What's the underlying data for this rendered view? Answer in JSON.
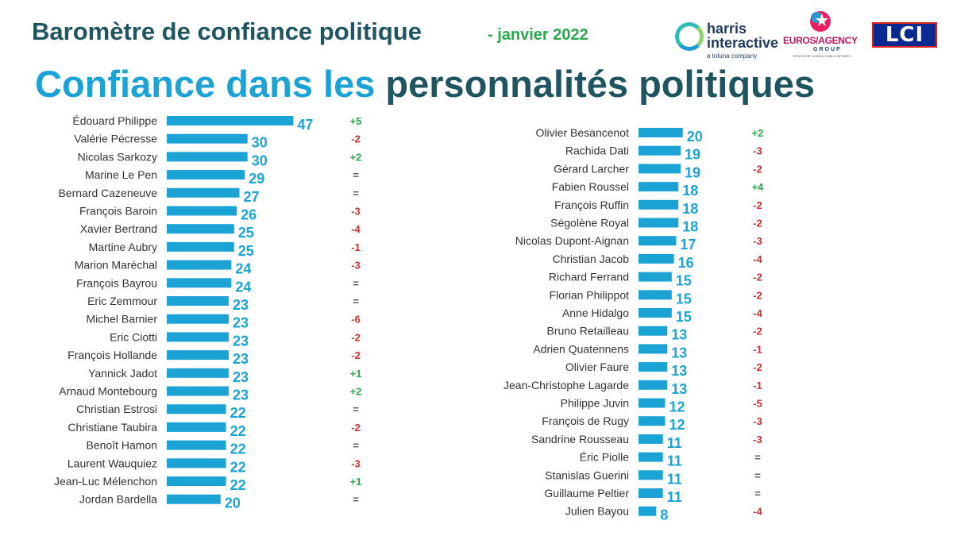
{
  "header": {
    "title": "Baromètre de confiance politique",
    "date": "- janvier 2022",
    "subtitle_part1": "Confiance dans les",
    "subtitle_part2": "personnalités politiques"
  },
  "logos": {
    "harris_line1": "harris",
    "harris_line2": "interactive",
    "harris_tagline": "a toluna company",
    "euros_name": "EUROS/AGENCY",
    "euros_group": "GROUP",
    "euros_tagline": "STRATEGIE COMM & PUBLIC AFFAIRS",
    "lci": "LCI"
  },
  "colors": {
    "bar": "#1ba3d6",
    "positive": "#2aa84a",
    "negative": "#d32f2f",
    "neutral": "#555555"
  },
  "chart_data": [
    {
      "type": "bar",
      "orientation": "horizontal",
      "categories": [
        "Édouard Philippe",
        "Valérie Pécresse",
        "Nicolas Sarkozy",
        "Marine Le Pen",
        "Bernard Cazeneuve",
        "François Baroin",
        "Xavier Bertrand",
        "Martine Aubry",
        "Marion Maréchal",
        "François Bayrou",
        "Eric Zemmour",
        "Michel Barnier",
        "Eric Ciotti",
        "François Hollande",
        "Yannick Jadot",
        "Arnaud Montebourg",
        "Christian Estrosi",
        "Christiane Taubira",
        "Benoît Hamon",
        "Laurent Wauquiez",
        "Jean-Luc Mélenchon",
        "Jordan Bardella"
      ],
      "values": [
        47,
        30,
        30,
        29,
        27,
        26,
        25,
        25,
        24,
        24,
        23,
        23,
        23,
        23,
        23,
        23,
        22,
        22,
        22,
        22,
        22,
        20
      ],
      "changes": [
        "+5",
        "-2",
        "+2",
        "=",
        "=",
        "-3",
        "-4",
        "-1",
        "-3",
        "=",
        "=",
        "-6",
        "-2",
        "-2",
        "+1",
        "+2",
        "=",
        "-2",
        "=",
        "-3",
        "+1",
        "="
      ]
    },
    {
      "type": "bar",
      "orientation": "horizontal",
      "categories": [
        "Olivier Besancenot",
        "Rachida Dati",
        "Gérard Larcher",
        "Fabien Roussel",
        "François Ruffin",
        "Ségolène Royal",
        "Nicolas Dupont-Aignan",
        "Christian Jacob",
        "Richard Ferrand",
        "Florian Philippot",
        "Anne Hidalgo",
        "Bruno Retailleau",
        "Adrien Quatennens",
        "Olivier Faure",
        "Jean-Christophe Lagarde",
        "Philippe Juvin",
        "François de Rugy",
        "Sandrine Rousseau",
        "Éric Piolle",
        "Stanislas Guerini",
        "Guillaume Peltier",
        "Julien Bayou"
      ],
      "values": [
        20,
        19,
        19,
        18,
        18,
        18,
        17,
        16,
        15,
        15,
        15,
        13,
        13,
        13,
        13,
        12,
        12,
        11,
        11,
        11,
        11,
        8
      ],
      "changes": [
        "+2",
        "-3",
        "-2",
        "+4",
        "-2",
        "-2",
        "-3",
        "-4",
        "-2",
        "-2",
        "-4",
        "-2",
        "-1",
        "-2",
        "-1",
        "-5",
        "-3",
        "-3",
        "=",
        "=",
        "=",
        "-4"
      ]
    }
  ]
}
